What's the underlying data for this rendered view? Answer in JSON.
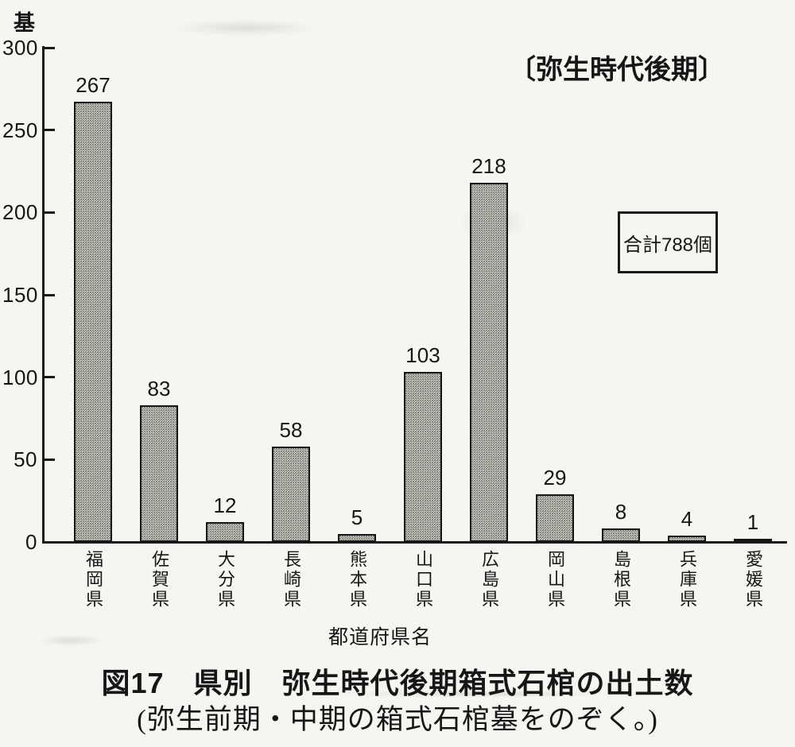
{
  "chart_data": {
    "type": "bar",
    "categories": [
      "福岡県",
      "佐賀県",
      "大分県",
      "長崎県",
      "熊本県",
      "山口県",
      "広島県",
      "岡山県",
      "島根県",
      "兵庫県",
      "愛媛県"
    ],
    "values": [
      267,
      83,
      12,
      58,
      5,
      103,
      218,
      29,
      8,
      4,
      1
    ],
    "data_labels_shown": true,
    "title": "図17　県別　弥生時代後期箱式石棺の出土数",
    "subtitle": "(弥生前期・中期の箱式石棺墓をのぞく。)",
    "xlabel": "都道府県名",
    "ylabel": "基",
    "ylim": [
      0,
      300
    ],
    "yticks": [
      0,
      50,
      100,
      150,
      200,
      250,
      300
    ],
    "grid": false,
    "legend_position": "none",
    "annotations": {
      "period": "〔弥生時代後期〕",
      "total": "合計788個"
    },
    "colors": {
      "paper": "#f6f5f1",
      "ink": "#161616",
      "bar_fill": "#dcdbd6",
      "bar_dot": "#71706a",
      "bar_border": "#151515"
    }
  }
}
